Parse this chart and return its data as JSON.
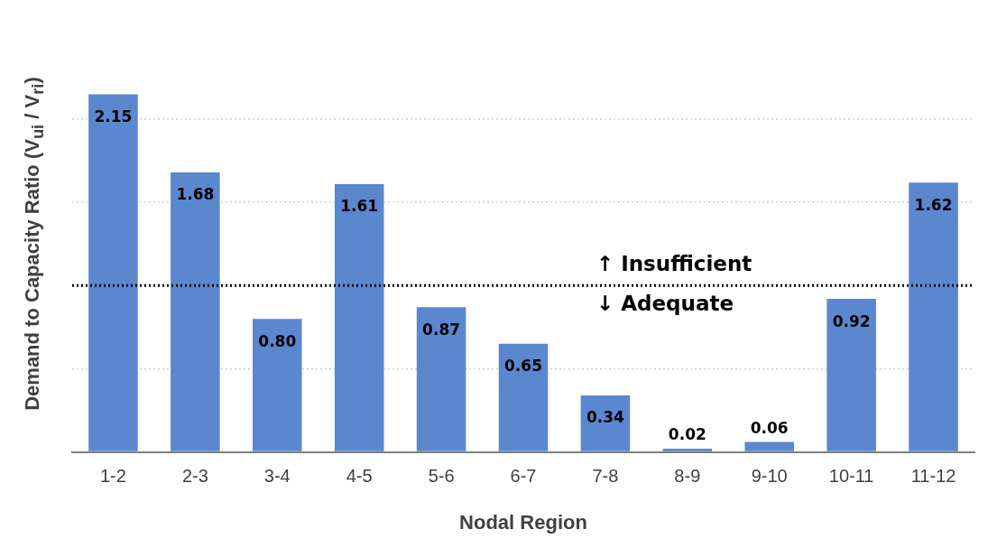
{
  "chart_data": {
    "type": "bar",
    "xlabel": "Nodal Region",
    "ylabel": "Demand to Capacity Ratio (V$_{ui}$ / V$_{ri}$)",
    "categories": [
      "1-2",
      "2-3",
      "3-4",
      "4-5",
      "5-6",
      "6-7",
      "7-8",
      "8-9",
      "9-10",
      "10-11",
      "11-12"
    ],
    "values": [
      2.15,
      1.68,
      0.8,
      1.61,
      0.87,
      0.65,
      0.34,
      0.02,
      0.06,
      0.92,
      1.62
    ],
    "value_labels": [
      "2.15",
      "1.68",
      "0.80",
      "1.61",
      "0.87",
      "0.65",
      "0.34",
      "0.02",
      "0.06",
      "0.92",
      "1.62"
    ],
    "color": "#5b87cf",
    "yticks": [
      {
        "value": 0,
        "label": null
      },
      {
        "value": 0.5,
        "label": null
      },
      {
        "value": 1,
        "label": null
      },
      {
        "value": 1.5,
        "label": null
      },
      {
        "value": 2,
        "label": null
      }
    ],
    "tick_labels": "x",
    "grid": "y",
    "legend": false,
    "ref_lines": [
      {
        "axis": "y",
        "value": 1,
        "line_style": "dotted",
        "color": "#000000"
      }
    ],
    "annotations": [
      "↑ Insufficient",
      "↓ Adequate"
    ]
  }
}
